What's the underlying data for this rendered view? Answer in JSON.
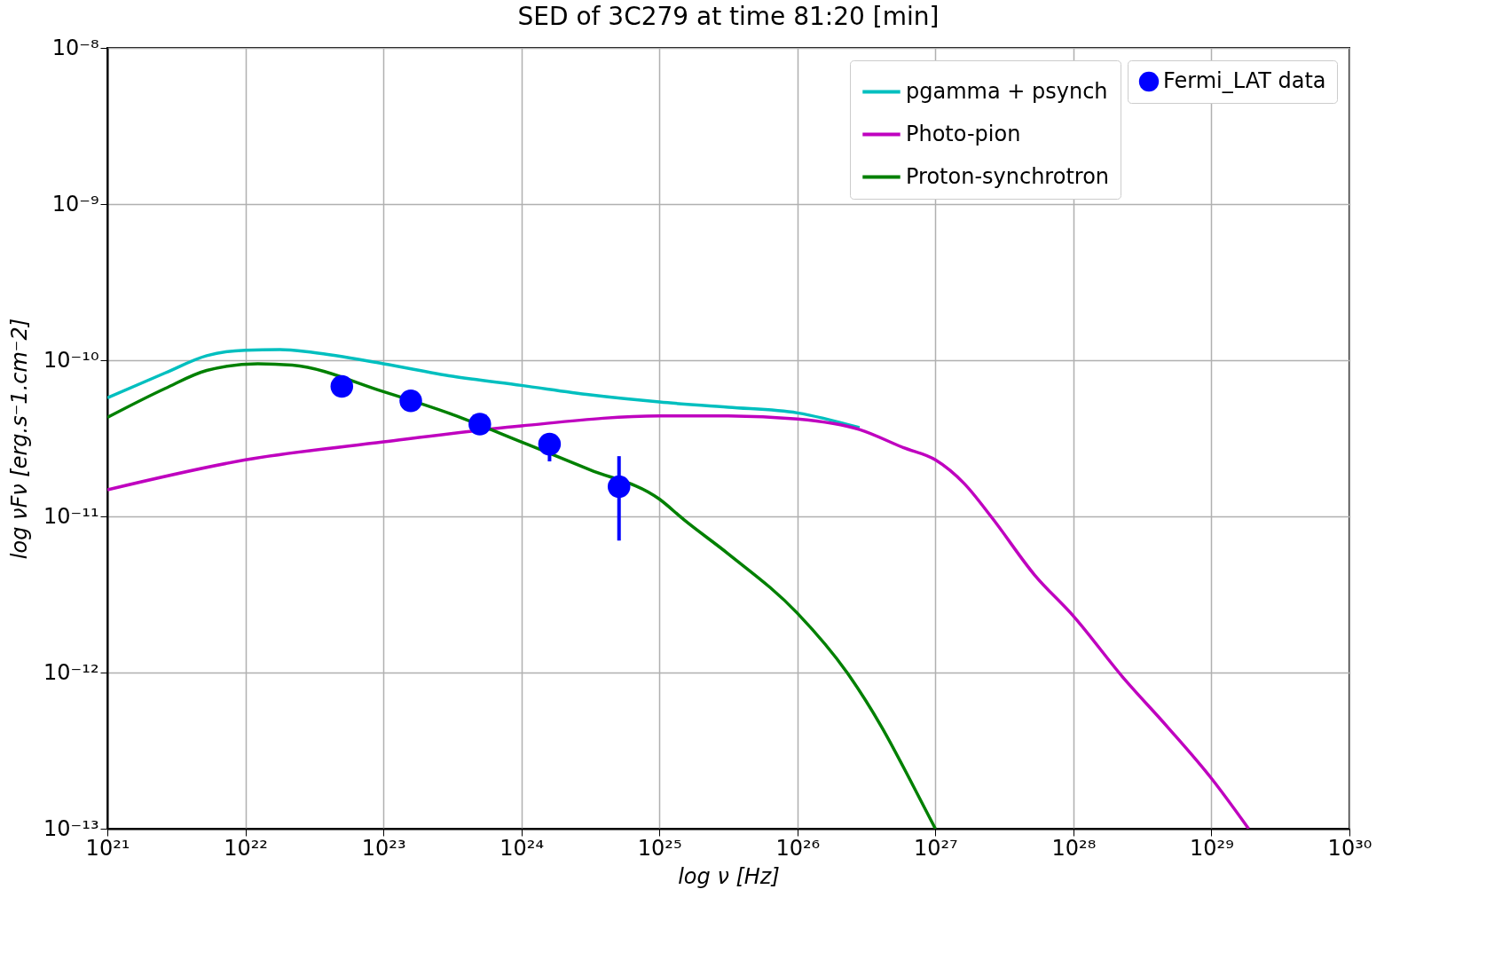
{
  "chart_data": {
    "type": "line",
    "title": "SED of 3C279 at time 81:20 [min]",
    "xlabel": "log ν [Hz]",
    "ylabel": "log νFν [erg.s⁻1.cm⁻2]",
    "log": "xy",
    "grid": true,
    "legend": "top right",
    "line_style": "solid",
    "xlim": [
      1e+21,
      1e+30
    ],
    "ylim": [
      1e-13,
      1e-08
    ],
    "xticks": [
      {
        "value": 1e+21,
        "label": "10²¹"
      },
      {
        "value": 1e+22,
        "label": "10²²"
      },
      {
        "value": 1e+23,
        "label": "10²³"
      },
      {
        "value": 1e+24,
        "label": "10²⁴"
      },
      {
        "value": 1e+25,
        "label": "10²⁵"
      },
      {
        "value": 1e+26,
        "label": "10²⁶"
      },
      {
        "value": 1e+27,
        "label": "10²⁷"
      },
      {
        "value": 1e+28,
        "label": "10²⁸"
      },
      {
        "value": 1e+29,
        "label": "10²⁹"
      },
      {
        "value": 1e+30,
        "label": "10³⁰"
      }
    ],
    "yticks": [
      {
        "value": 1e-13,
        "label": "10⁻¹³"
      },
      {
        "value": 1e-12,
        "label": "10⁻¹²"
      },
      {
        "value": 1e-11,
        "label": "10⁻¹¹"
      },
      {
        "value": 1e-10,
        "label": "10⁻¹⁰"
      },
      {
        "value": 1e-09,
        "label": "10⁻⁹"
      },
      {
        "value": 1e-08,
        "label": "10⁻⁸"
      }
    ],
    "series": [
      {
        "name": "pgamma + psynch",
        "color": "#00bfbf",
        "x": [
          1e+21,
          2.63e+21,
          5.25e+21,
          1e+22,
          1.78e+22,
          3.1e+22,
          1e+23,
          3.16e+23,
          1e+24,
          3.16e+24,
          1e+25,
          3.16e+25,
          1e+26,
          2.82e+26
        ],
        "values": [
          5.75e-11,
          8.3e-11,
          1.07e-10,
          1.16e-10,
          1.17e-10,
          1.12e-10,
          9.5e-11,
          7.9e-11,
          6.9e-11,
          6e-11,
          5.4e-11,
          5e-11,
          4.6e-11,
          3.7e-11
        ]
      },
      {
        "name": "Photo-pion",
        "color": "#bf00bf",
        "x": [
          1e+21,
          1e+22,
          1e+23,
          1e+24,
          1e+25,
          3.16e+25,
          1e+26,
          2.82e+26,
          5.9e+26,
          1e+27,
          1.62e+27,
          2.57e+27,
          5.25e+27,
          1e+28,
          2.29e+28,
          4.79e+28,
          1e+29,
          1.86e+29
        ],
        "values": [
          1.48e-11,
          2.3e-11,
          3e-11,
          3.8e-11,
          4.4e-11,
          4.4e-11,
          4.2e-11,
          3.6e-11,
          2.75e-11,
          2.3e-11,
          1.62e-11,
          9.8e-12,
          4.2e-12,
          2.3e-12,
          9.3e-13,
          4.5e-13,
          2.1e-13,
          1e-13
        ]
      },
      {
        "name": "Proton-synchrotron",
        "color": "#008000",
        "x": [
          1e+21,
          2.63e+21,
          5.25e+21,
          1.23e+22,
          2.19e+22,
          1e+23,
          3.16e+23,
          1e+24,
          3.1e+24,
          1e+25,
          1.51e+25,
          3.16e+25,
          1e+26,
          2.29e+26,
          4.07e+26,
          6.76e+26,
          1e+27
        ],
        "values": [
          4.3e-11,
          6.6e-11,
          8.6e-11,
          9.5e-11,
          9.3e-11,
          6.3e-11,
          4.5e-11,
          3e-11,
          2e-11,
          1.29e-11,
          9.5e-12,
          5.75e-12,
          2.4e-12,
          1e-12,
          4.5e-13,
          1.95e-13,
          1e-13
        ]
      },
      {
        "name": "Fermi_LAT data",
        "type": "scatter",
        "marker": "circle",
        "color": "#0000ff",
        "x": [
          5e+22,
          1.58e+23,
          5e+23,
          1.6e+24,
          5.1e+24
        ],
        "values": [
          6.8e-11,
          5.5e-11,
          3.9e-11,
          2.9e-11,
          1.55e-11
        ],
        "errors": [
          null,
          null,
          null,
          [
            2.25e-11,
            3.3e-11
          ],
          [
            7e-12,
            2.43e-11
          ]
        ]
      }
    ]
  }
}
